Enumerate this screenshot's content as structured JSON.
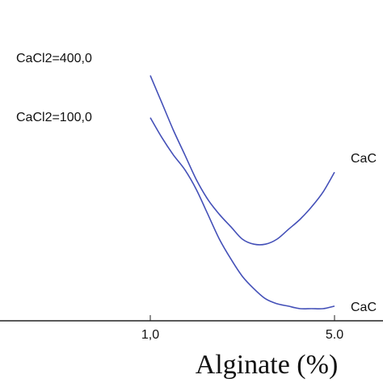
{
  "chart_data": {
    "type": "line",
    "xlabel": "Alginate (%)",
    "x_ticks": [
      "1,0",
      "5.0"
    ],
    "xlim": [
      1.0,
      5.0
    ],
    "ylim": [
      0,
      1
    ],
    "colors": {
      "line": "#4450b8",
      "axis": "#222222",
      "text": "#111111"
    },
    "series": [
      {
        "name": "CaCl2=400,0",
        "x": [
          1.0,
          1.25,
          1.5,
          1.75,
          2.0,
          2.25,
          2.5,
          2.75,
          3.0,
          3.25,
          3.5,
          3.75,
          4.0,
          4.25,
          4.5,
          4.75,
          5.0
        ],
        "y": [
          0.94,
          0.83,
          0.72,
          0.62,
          0.52,
          0.44,
          0.38,
          0.33,
          0.28,
          0.26,
          0.26,
          0.28,
          0.32,
          0.36,
          0.41,
          0.47,
          0.55
        ],
        "end_label": "CaC"
      },
      {
        "name": "CaCl2=100,0",
        "x": [
          1.0,
          1.25,
          1.5,
          1.75,
          2.0,
          2.25,
          2.5,
          2.75,
          3.0,
          3.25,
          3.5,
          3.75,
          4.0,
          4.25,
          4.5,
          4.75,
          5.0
        ],
        "y": [
          0.77,
          0.69,
          0.62,
          0.56,
          0.48,
          0.38,
          0.28,
          0.2,
          0.13,
          0.08,
          0.04,
          0.02,
          0.01,
          0.0,
          0.0,
          0.0,
          0.01
        ],
        "end_label": "CaC"
      }
    ]
  }
}
